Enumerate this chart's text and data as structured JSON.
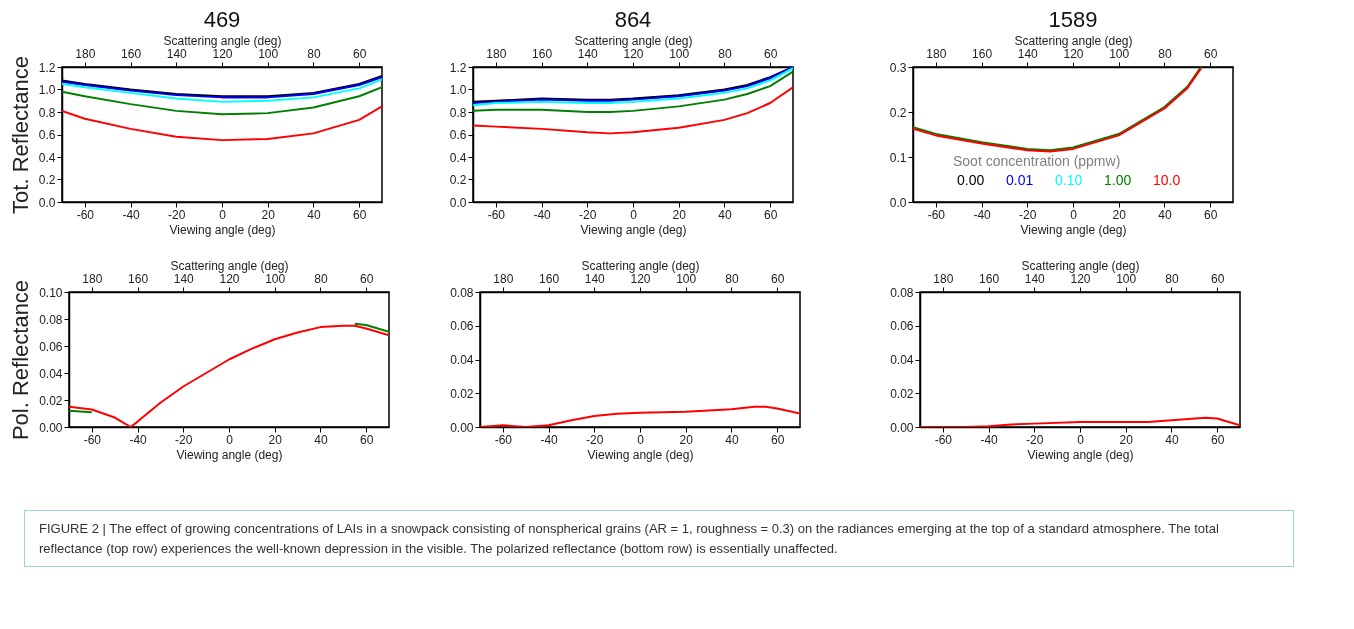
{
  "chart_data": [
    {
      "type": "line",
      "title": "469",
      "xlabel": "Viewing angle (deg)",
      "x2label": "Scattering angle (deg)",
      "ylabel": "Tot. Reflectance",
      "x": [
        -70,
        -60,
        -40,
        -20,
        0,
        20,
        40,
        60,
        70
      ],
      "series": [
        {
          "color": "#000000",
          "values": [
            1.08,
            1.05,
            1.0,
            0.96,
            0.94,
            0.94,
            0.97,
            1.05,
            1.12
          ]
        },
        {
          "color": "#0000ff",
          "values": [
            1.07,
            1.04,
            0.99,
            0.95,
            0.93,
            0.93,
            0.96,
            1.04,
            1.11
          ]
        },
        {
          "color": "#00ffff",
          "values": [
            1.05,
            1.02,
            0.97,
            0.92,
            0.89,
            0.9,
            0.93,
            1.01,
            1.09
          ]
        },
        {
          "color": "#008000",
          "values": [
            0.98,
            0.94,
            0.87,
            0.81,
            0.78,
            0.79,
            0.84,
            0.94,
            1.02
          ]
        },
        {
          "color": "#ff0000",
          "values": [
            0.81,
            0.74,
            0.65,
            0.58,
            0.55,
            0.56,
            0.61,
            0.73,
            0.85
          ]
        }
      ],
      "xlim": [
        -70,
        70
      ],
      "xticks": [
        -60,
        -40,
        -20,
        0,
        20,
        40,
        60
      ],
      "x2lim": [
        190,
        50
      ],
      "x2ticks": [
        180,
        160,
        140,
        120,
        100,
        80,
        60
      ],
      "ylim": [
        0,
        1.2
      ],
      "yticks": [
        {
          "value": 0,
          "label": "0.0"
        },
        {
          "value": 0.2,
          "label": "0.2"
        },
        {
          "value": 0.4,
          "label": "0.4"
        },
        {
          "value": 0.6,
          "label": "0.6"
        },
        {
          "value": 0.8,
          "label": "0.8"
        },
        {
          "value": 1,
          "label": "1.0"
        },
        {
          "value": 1.2,
          "label": "1.2"
        }
      ]
    },
    {
      "type": "line",
      "title": "864",
      "xlabel": "Viewing angle (deg)",
      "x2label": "Scattering angle (deg)",
      "x": [
        -70,
        -60,
        -40,
        -20,
        -10,
        0,
        20,
        40,
        50,
        60,
        70
      ],
      "series": [
        {
          "color": "#000000",
          "values": [
            0.89,
            0.9,
            0.92,
            0.91,
            0.91,
            0.92,
            0.95,
            1.0,
            1.04,
            1.11,
            1.2
          ]
        },
        {
          "color": "#0000ff",
          "values": [
            0.88,
            0.89,
            0.91,
            0.9,
            0.9,
            0.91,
            0.94,
            0.99,
            1.03,
            1.1,
            1.2
          ]
        },
        {
          "color": "#00ffff",
          "values": [
            0.86,
            0.88,
            0.89,
            0.88,
            0.88,
            0.89,
            0.92,
            0.97,
            1.01,
            1.08,
            1.19
          ]
        },
        {
          "color": "#008000",
          "values": [
            0.81,
            0.82,
            0.82,
            0.8,
            0.8,
            0.81,
            0.85,
            0.91,
            0.96,
            1.03,
            1.16
          ]
        },
        {
          "color": "#ff0000",
          "values": [
            0.68,
            0.67,
            0.65,
            0.62,
            0.61,
            0.62,
            0.66,
            0.73,
            0.79,
            0.88,
            1.02
          ]
        }
      ],
      "xlim": [
        -70,
        70
      ],
      "xticks": [
        -60,
        -40,
        -20,
        0,
        20,
        40,
        60
      ],
      "x2lim": [
        190,
        50
      ],
      "x2ticks": [
        180,
        160,
        140,
        120,
        100,
        80,
        60
      ],
      "ylim": [
        0,
        1.2
      ],
      "yticks": [
        {
          "value": 0,
          "label": "0.0"
        },
        {
          "value": 0.2,
          "label": "0.2"
        },
        {
          "value": 0.4,
          "label": "0.4"
        },
        {
          "value": 0.6,
          "label": "0.6"
        },
        {
          "value": 0.8,
          "label": "0.8"
        },
        {
          "value": 1,
          "label": "1.0"
        },
        {
          "value": 1.2,
          "label": "1.2"
        }
      ]
    },
    {
      "type": "line",
      "title": "1589",
      "xlabel": "Viewing angle (deg)",
      "x2label": "Scattering angle (deg)",
      "legend_title": "Soot concentration (ppmw)",
      "legend": "bottom",
      "x": [
        -70,
        -60,
        -40,
        -20,
        -10,
        0,
        20,
        40,
        50,
        56
      ],
      "series": [
        {
          "name": "0.00",
          "color": "#000000",
          "values": [
            null,
            null,
            null,
            null,
            null,
            null,
            null,
            null,
            null,
            null
          ]
        },
        {
          "name": "0.01",
          "color": "#0000ff",
          "values": [
            null,
            null,
            null,
            null,
            null,
            null,
            null,
            null,
            null,
            null
          ]
        },
        {
          "name": "0.10",
          "color": "#00ffff",
          "values": [
            null,
            null,
            null,
            null,
            null,
            null,
            null,
            null,
            null,
            null
          ]
        },
        {
          "name": "1.00",
          "color": "#008000",
          "values": [
            0.166,
            0.151,
            0.133,
            0.118,
            0.115,
            0.121,
            0.151,
            0.211,
            0.256,
            0.3
          ]
        },
        {
          "name": "10.0",
          "color": "#ff0000",
          "values": [
            0.163,
            0.148,
            0.13,
            0.115,
            0.112,
            0.118,
            0.148,
            0.208,
            0.253,
            0.297
          ]
        }
      ],
      "xlim": [
        -70,
        70
      ],
      "xticks": [
        -60,
        -40,
        -20,
        0,
        20,
        40,
        60
      ],
      "x2lim": [
        190,
        50
      ],
      "x2ticks": [
        180,
        160,
        140,
        120,
        100,
        80,
        60
      ],
      "ylim": [
        0,
        0.3
      ],
      "yticks": [
        {
          "value": 0,
          "label": "0.0"
        },
        {
          "value": 0.1,
          "label": "0.1"
        },
        {
          "value": 0.2,
          "label": "0.2"
        },
        {
          "value": 0.3,
          "label": "0.3"
        }
      ]
    },
    {
      "type": "line",
      "xlabel": "Viewing angle (deg)",
      "x2label": "Scattering angle (deg)",
      "ylabel": "Pol. Reflectance",
      "x": [
        -70,
        -60,
        -50,
        -43,
        -40,
        -30,
        -20,
        -10,
        0,
        10,
        20,
        30,
        40,
        50,
        55,
        60,
        70
      ],
      "series": [
        {
          "color": "#008000",
          "values": [
            0.012,
            0.011,
            null,
            null,
            null,
            null,
            null,
            null,
            null,
            null,
            null,
            null,
            null,
            null,
            0.0765,
            0.0755,
            0.0705
          ]
        },
        {
          "color": "#ff0000",
          "values": [
            0.015,
            0.013,
            0.007,
            0.0,
            0.004,
            0.018,
            0.03,
            0.04,
            0.05,
            0.058,
            0.065,
            0.07,
            0.074,
            0.075,
            0.075,
            0.073,
            0.068
          ]
        }
      ],
      "xlim": [
        -70,
        70
      ],
      "xticks": [
        -60,
        -40,
        -20,
        0,
        20,
        40,
        60
      ],
      "x2lim": [
        190,
        50
      ],
      "x2ticks": [
        180,
        160,
        140,
        120,
        100,
        80,
        60
      ],
      "ylim": [
        0,
        0.1
      ],
      "yticks": [
        {
          "value": 0,
          "label": "0.00"
        },
        {
          "value": 0.02,
          "label": "0.02"
        },
        {
          "value": 0.04,
          "label": "0.04"
        },
        {
          "value": 0.06,
          "label": "0.06"
        },
        {
          "value": 0.08,
          "label": "0.08"
        },
        {
          "value": 0.1,
          "label": "0.10"
        }
      ]
    },
    {
      "type": "line",
      "xlabel": "Viewing angle (deg)",
      "x2label": "Scattering angle (deg)",
      "x": [
        -70,
        -60,
        -50,
        -40,
        -30,
        -20,
        -10,
        0,
        20,
        40,
        50,
        55,
        60,
        70
      ],
      "series": [
        {
          "color": "#ff0000",
          "values": [
            0.0,
            0.001,
            0.0,
            0.001,
            0.004,
            0.0065,
            0.0078,
            0.0085,
            0.009,
            0.0105,
            0.012,
            0.012,
            0.011,
            0.008
          ]
        }
      ],
      "xlim": [
        -70,
        70
      ],
      "xticks": [
        -60,
        -40,
        -20,
        0,
        20,
        40,
        60
      ],
      "x2lim": [
        190,
        50
      ],
      "x2ticks": [
        180,
        160,
        140,
        120,
        100,
        80,
        60
      ],
      "ylim": [
        0,
        0.08
      ],
      "yticks": [
        {
          "value": 0,
          "label": "0.00"
        },
        {
          "value": 0.02,
          "label": "0.02"
        },
        {
          "value": 0.04,
          "label": "0.04"
        },
        {
          "value": 0.06,
          "label": "0.06"
        },
        {
          "value": 0.08,
          "label": "0.08"
        }
      ]
    },
    {
      "type": "line",
      "xlabel": "Viewing angle (deg)",
      "x2label": "Scattering angle (deg)",
      "x": [
        -70,
        -60,
        -50,
        -40,
        -30,
        -20,
        0,
        20,
        30,
        40,
        55,
        60,
        70
      ],
      "series": [
        {
          "color": "#ff0000",
          "values": [
            0.0,
            0.0,
            0.0,
            0.0005,
            0.0015,
            0.002,
            0.003,
            0.003,
            0.003,
            0.004,
            0.0055,
            0.005,
            0.001
          ]
        }
      ],
      "xlim": [
        -70,
        70
      ],
      "xticks": [
        -60,
        -40,
        -20,
        0,
        20,
        40,
        60
      ],
      "x2lim": [
        190,
        50
      ],
      "x2ticks": [
        180,
        160,
        140,
        120,
        100,
        80,
        60
      ],
      "ylim": [
        0,
        0.08
      ],
      "yticks": [
        {
          "value": 0,
          "label": "0.00"
        },
        {
          "value": 0.02,
          "label": "0.02"
        },
        {
          "value": 0.04,
          "label": "0.04"
        },
        {
          "value": 0.06,
          "label": "0.06"
        },
        {
          "value": 0.08,
          "label": "0.08"
        }
      ],
      "annotations": [
        "FIGURE 2 | The effect of growing concentrations of LAIs in a snowpack consisting of nonspherical grains (AR = 1, roughness = 0.3) on the radiances emerging at the top of a standard atmosphere. The total reflectance (top row) experiences the well-known depression in the visible. The polarized reflectance (bottom row) is essentially unaffected."
      ]
    }
  ]
}
